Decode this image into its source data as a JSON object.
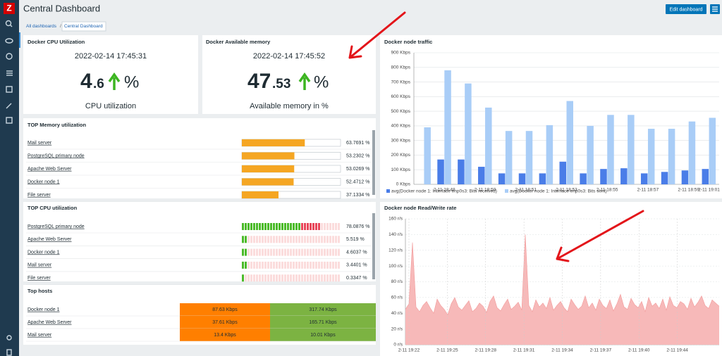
{
  "sidebar": {
    "logo": "Z"
  },
  "header": {
    "title": "Central Dashboard",
    "edit_button": "Edit dashboard"
  },
  "breadcrumb": {
    "items": [
      "All dashboards",
      "Central Dashboard"
    ],
    "separator": "/"
  },
  "widgets": {
    "cpu": {
      "title": "Docker CPU Utilization",
      "time": "2022-02-14 17:45:31",
      "value_int": "4",
      "value_dec": ".6",
      "units": "%",
      "description": "CPU utilization"
    },
    "memory": {
      "title": "Docker Available memory",
      "time": "2022-02-14 17:45:52",
      "value_int": "47",
      "value_dec": ".53",
      "units": "%",
      "description": "Available memory in %"
    },
    "top_memory": {
      "title": "TOP Memory utilization",
      "xlim": [
        0,
        100
      ],
      "color": "#f5a623",
      "rows": [
        {
          "name": "Mail server",
          "value": 63.7691,
          "label": "63.7691 %"
        },
        {
          "name": "PostgreSQL primary node",
          "value": 53.2302,
          "label": "53.2302 %"
        },
        {
          "name": "Apache Web Server",
          "value": 53.0269,
          "label": "53.0269 %"
        },
        {
          "name": "Docker node 1",
          "value": 52.4712,
          "label": "52.4712 %"
        },
        {
          "name": "File server",
          "value": 37.1334,
          "label": "37.1334 %"
        }
      ]
    },
    "top_cpu": {
      "title": "TOP CPU utilization",
      "xlim": [
        0,
        100
      ],
      "colors": {
        "low": "#4cbb2a",
        "high": "#e8475a",
        "empty": "#fbdcdc"
      },
      "rows": [
        {
          "name": "PostgreSQL primary node",
          "value": 78.0876,
          "label": "78.0876 %"
        },
        {
          "name": "Apache Web Server",
          "value": 5.519,
          "label": "5.519 %"
        },
        {
          "name": "Docker node 1",
          "value": 4.6037,
          "label": "4.6037 %"
        },
        {
          "name": "Mail server",
          "value": 3.4401,
          "label": "3.4401 %"
        },
        {
          "name": "File server",
          "value": 0.3347,
          "label": "0.3347 %"
        }
      ]
    },
    "top_hosts": {
      "title": "Top hosts",
      "colors": [
        "#ff7f00",
        "#7cb342"
      ],
      "rows": [
        [
          "Docker node 1",
          "87.63 Kbps",
          "317.74 Kbps"
        ],
        [
          "Apache Web Server",
          "37.61 Kbps",
          "165.71 Kbps"
        ],
        [
          "Mail server",
          "13.4 Kbps",
          "10.01 Kbps"
        ]
      ]
    }
  },
  "chart_data": [
    {
      "type": "bar",
      "title": "Docker node traffic",
      "categories": [
        null,
        "2-11 18:48",
        null,
        "2-11 18:50",
        null,
        "2-11 18:51",
        null,
        "2-11 18:53",
        null,
        "2-11 18:55",
        null,
        "2-11 18:57",
        null,
        "2-11 18:59",
        "2-11 19:01"
      ],
      "series": [
        {
          "name": "avg(Docker node 1: Interface enp0s3: Bits received)",
          "color": "#4a7de8",
          "values": [
            null,
            170,
            170,
            120,
            75,
            75,
            75,
            155,
            75,
            105,
            110,
            75,
            85,
            95,
            105
          ]
        },
        {
          "name": "avg(Docker node 1: Interface enp0s3: Bits sent)",
          "color": "#a9cdf7",
          "values": [
            390,
            780,
            690,
            525,
            365,
            365,
            405,
            570,
            400,
            475,
            475,
            380,
            380,
            430,
            455
          ]
        }
      ],
      "ylim": [
        0,
        900
      ],
      "yticks": [
        {
          "value": 0,
          "label": "0 Kbps"
        },
        {
          "value": 100,
          "label": "100 Kbps"
        },
        {
          "value": 200,
          "label": "200 Kbps"
        },
        {
          "value": 300,
          "label": "300 Kbps"
        },
        {
          "value": 400,
          "label": "400 Kbps"
        },
        {
          "value": 500,
          "label": "500 Kbps"
        },
        {
          "value": 600,
          "label": "600 Kbps"
        },
        {
          "value": 700,
          "label": "700 Kbps"
        },
        {
          "value": 800,
          "label": "800 Kbps"
        },
        {
          "value": 900,
          "label": "900 Kbps"
        }
      ],
      "grid": true
    },
    {
      "type": "area",
      "title": "Docker node Read/Write rate",
      "xtick_labels": [
        "2-11 19:22",
        "2-11 19:25",
        "2-11 19:28",
        "2-11 19:31",
        "2-11 19:34",
        "2-11 19:37",
        "2-11 19:40",
        "2-11 19:44"
      ],
      "values": [
        45,
        52,
        130,
        48,
        42,
        50,
        55,
        47,
        40,
        58,
        50,
        45,
        38,
        52,
        60,
        48,
        44,
        50,
        56,
        42,
        46,
        53,
        49,
        41,
        55,
        62,
        47,
        43,
        51,
        58,
        45,
        49,
        54,
        44,
        140,
        50,
        42,
        57,
        48,
        53,
        46,
        60,
        44,
        50,
        55,
        47,
        42,
        58,
        51,
        45,
        49,
        62,
        47,
        53,
        44,
        58,
        50,
        46,
        57,
        43,
        52,
        64,
        48,
        45,
        59,
        51,
        47,
        55,
        42,
        60,
        49,
        53,
        46,
        58,
        44,
        61,
        50,
        47,
        55,
        52,
        45,
        59,
        48,
        54,
        62,
        50,
        46,
        57,
        53,
        49
      ],
      "color": "#f7b9b9",
      "line_color": "#f29a9a",
      "ylim": [
        0,
        160
      ],
      "yticks": [
        {
          "value": 0,
          "label": "0 r/s"
        },
        {
          "value": 20,
          "label": "20 r/s"
        },
        {
          "value": 40,
          "label": "40 r/s"
        },
        {
          "value": 60,
          "label": "60 r/s"
        },
        {
          "value": 80,
          "label": "80 r/s"
        },
        {
          "value": 100,
          "label": "100 r/s"
        },
        {
          "value": 120,
          "label": "120 r/s"
        },
        {
          "value": 140,
          "label": "140 r/s"
        },
        {
          "value": 160,
          "label": "160 r/s"
        }
      ],
      "grid": true
    }
  ]
}
